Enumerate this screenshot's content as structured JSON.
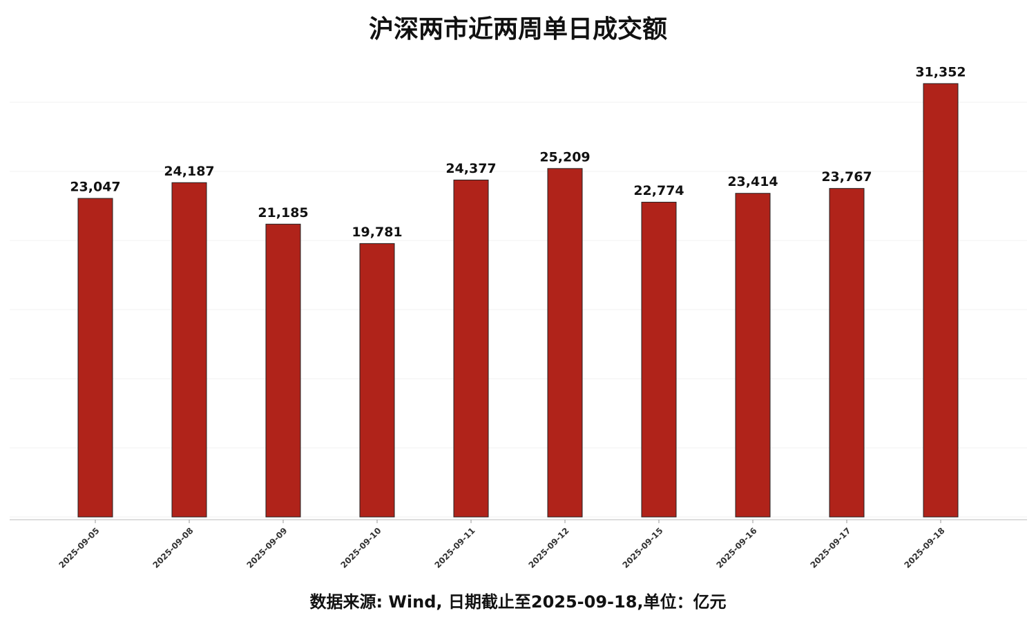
{
  "chart_data": {
    "type": "bar",
    "title": "沪深两市近两周单日成交额",
    "subtitle": "数据来源: Wind, 日期截止至2025-09-18,单位：亿元",
    "categories": [
      "2025-09-05",
      "2025-09-08",
      "2025-09-09",
      "2025-09-10",
      "2025-09-11",
      "2025-09-12",
      "2025-09-15",
      "2025-09-16",
      "2025-09-17",
      "2025-09-18"
    ],
    "values": [
      23047,
      24187,
      21185,
      19781,
      24377,
      25209,
      22774,
      23414,
      23767,
      31352
    ],
    "value_labels": [
      "23,047",
      "24,187",
      "21,185",
      "19,781",
      "24,377",
      "25,209",
      "22,774",
      "23,414",
      "23,767",
      "31,352"
    ],
    "color": "#b0231a",
    "ylim": [
      0,
      33000
    ],
    "yticks": [
      0,
      5000,
      10000,
      15000,
      20000,
      25000,
      30000
    ],
    "grid": true
  }
}
